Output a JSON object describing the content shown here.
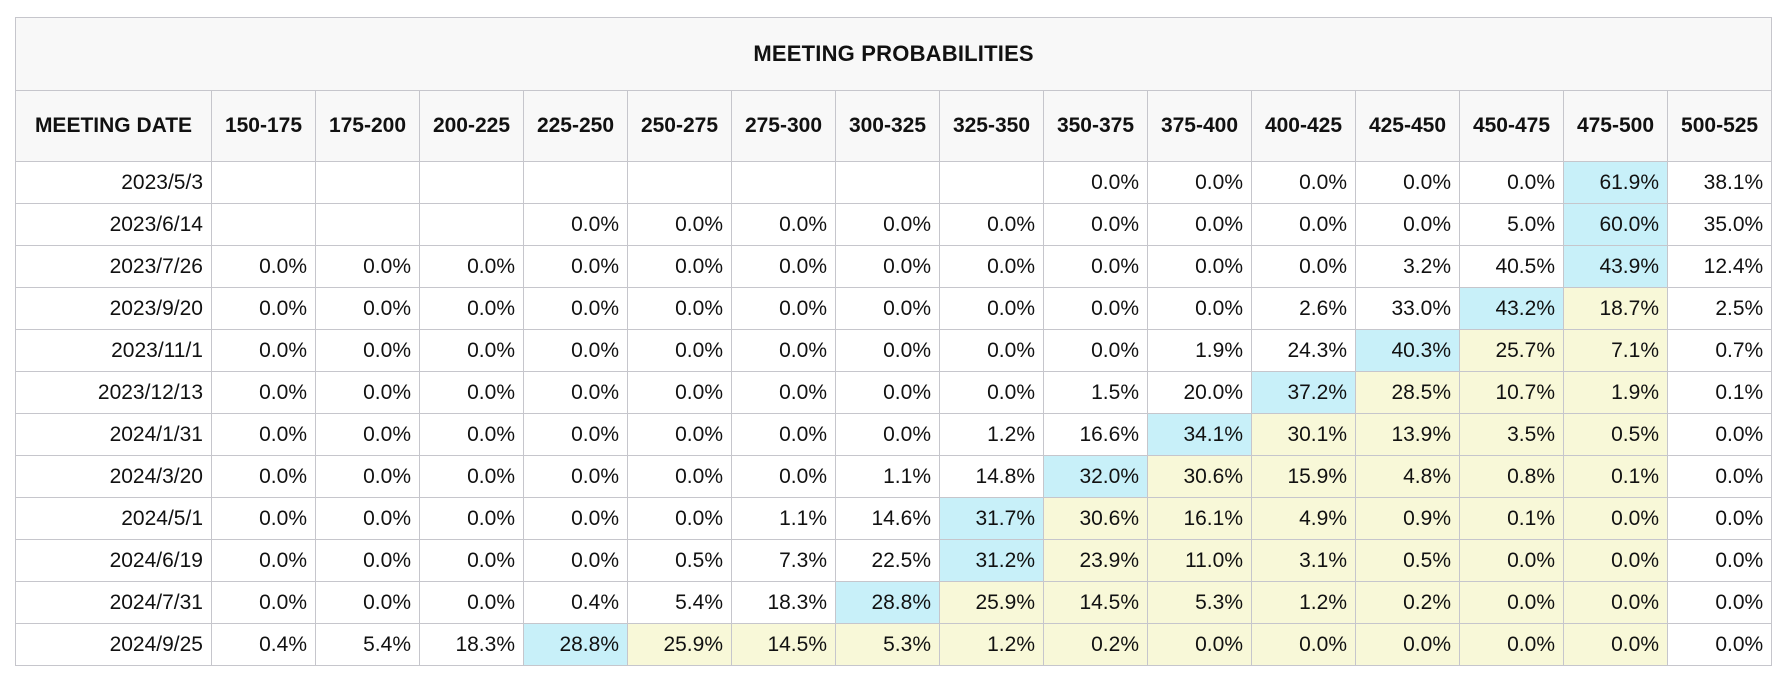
{
  "title": "MEETING PROBABILITIES",
  "colors": {
    "max": "#c8f0f9",
    "above": "#f8f8d8",
    "header_bg": "#f8f8f8",
    "border": "#c6c6cc"
  },
  "date_header": "MEETING DATE",
  "columns": [
    "150-175",
    "175-200",
    "200-225",
    "225-250",
    "250-275",
    "275-300",
    "300-325",
    "325-350",
    "350-375",
    "375-400",
    "400-425",
    "425-450",
    "450-475",
    "475-500",
    "500-525"
  ],
  "rows": [
    {
      "date": "2023/5/3",
      "values": [
        "",
        "",
        "",
        "",
        "",
        "",
        "",
        "",
        "0.0%",
        "0.0%",
        "0.0%",
        "0.0%",
        "0.0%",
        "61.9%",
        "38.1%"
      ],
      "max": 13,
      "above_start": 15
    },
    {
      "date": "2023/6/14",
      "values": [
        "",
        "",
        "",
        "0.0%",
        "0.0%",
        "0.0%",
        "0.0%",
        "0.0%",
        "0.0%",
        "0.0%",
        "0.0%",
        "0.0%",
        "5.0%",
        "60.0%",
        "35.0%"
      ],
      "max": 13,
      "above_start": 15
    },
    {
      "date": "2023/7/26",
      "values": [
        "0.0%",
        "0.0%",
        "0.0%",
        "0.0%",
        "0.0%",
        "0.0%",
        "0.0%",
        "0.0%",
        "0.0%",
        "0.0%",
        "0.0%",
        "3.2%",
        "40.5%",
        "43.9%",
        "12.4%"
      ],
      "max": 13,
      "above_start": 15
    },
    {
      "date": "2023/9/20",
      "values": [
        "0.0%",
        "0.0%",
        "0.0%",
        "0.0%",
        "0.0%",
        "0.0%",
        "0.0%",
        "0.0%",
        "0.0%",
        "0.0%",
        "2.6%",
        "33.0%",
        "43.2%",
        "18.7%",
        "2.5%"
      ],
      "max": 12,
      "above_start": 13,
      "above_end": 13
    },
    {
      "date": "2023/11/1",
      "values": [
        "0.0%",
        "0.0%",
        "0.0%",
        "0.0%",
        "0.0%",
        "0.0%",
        "0.0%",
        "0.0%",
        "0.0%",
        "1.9%",
        "24.3%",
        "40.3%",
        "25.7%",
        "7.1%",
        "0.7%"
      ],
      "max": 11,
      "above_start": 12,
      "above_end": 13
    },
    {
      "date": "2023/12/13",
      "values": [
        "0.0%",
        "0.0%",
        "0.0%",
        "0.0%",
        "0.0%",
        "0.0%",
        "0.0%",
        "0.0%",
        "1.5%",
        "20.0%",
        "37.2%",
        "28.5%",
        "10.7%",
        "1.9%",
        "0.1%"
      ],
      "max": 10,
      "above_start": 11,
      "above_end": 13
    },
    {
      "date": "2024/1/31",
      "values": [
        "0.0%",
        "0.0%",
        "0.0%",
        "0.0%",
        "0.0%",
        "0.0%",
        "0.0%",
        "1.2%",
        "16.6%",
        "34.1%",
        "30.1%",
        "13.9%",
        "3.5%",
        "0.5%",
        "0.0%"
      ],
      "max": 9,
      "above_start": 10,
      "above_end": 13
    },
    {
      "date": "2024/3/20",
      "values": [
        "0.0%",
        "0.0%",
        "0.0%",
        "0.0%",
        "0.0%",
        "0.0%",
        "1.1%",
        "14.8%",
        "32.0%",
        "30.6%",
        "15.9%",
        "4.8%",
        "0.8%",
        "0.1%",
        "0.0%"
      ],
      "max": 8,
      "above_start": 9,
      "above_end": 13
    },
    {
      "date": "2024/5/1",
      "values": [
        "0.0%",
        "0.0%",
        "0.0%",
        "0.0%",
        "0.0%",
        "1.1%",
        "14.6%",
        "31.7%",
        "30.6%",
        "16.1%",
        "4.9%",
        "0.9%",
        "0.1%",
        "0.0%",
        "0.0%"
      ],
      "max": 7,
      "above_start": 8,
      "above_end": 13
    },
    {
      "date": "2024/6/19",
      "values": [
        "0.0%",
        "0.0%",
        "0.0%",
        "0.0%",
        "0.5%",
        "7.3%",
        "22.5%",
        "31.2%",
        "23.9%",
        "11.0%",
        "3.1%",
        "0.5%",
        "0.0%",
        "0.0%",
        "0.0%"
      ],
      "max": 7,
      "above_start": 8,
      "above_end": 13
    },
    {
      "date": "2024/7/31",
      "values": [
        "0.0%",
        "0.0%",
        "0.0%",
        "0.4%",
        "5.4%",
        "18.3%",
        "28.8%",
        "25.9%",
        "14.5%",
        "5.3%",
        "1.2%",
        "0.2%",
        "0.0%",
        "0.0%",
        "0.0%"
      ],
      "max": 6,
      "above_start": 7,
      "above_end": 13
    },
    {
      "date": "2024/9/25",
      "values": [
        "0.4%",
        "5.4%",
        "18.3%",
        "28.8%",
        "25.9%",
        "14.5%",
        "5.3%",
        "1.2%",
        "0.2%",
        "0.0%",
        "0.0%",
        "0.0%",
        "0.0%",
        "0.0%",
        "0.0%"
      ],
      "max": 3,
      "above_start": 4,
      "above_end": 13
    }
  ]
}
